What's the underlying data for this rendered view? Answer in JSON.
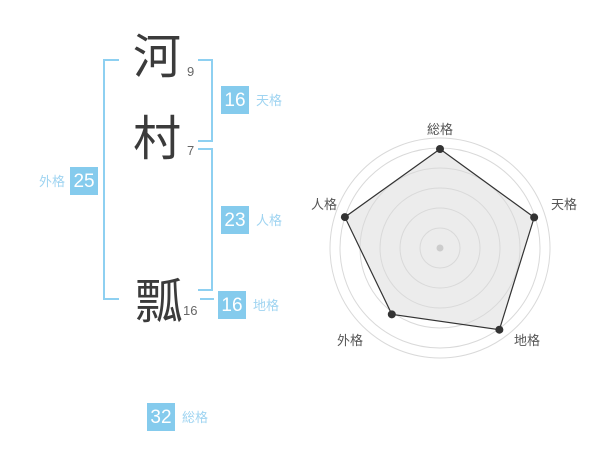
{
  "colors": {
    "box_blue": "#85cbed",
    "label_blue": "#9fd4f1",
    "bracket_blue": "#8ed0f1",
    "kanji_ink": "#3b3b3b",
    "stroke_count_gray": "#666666",
    "ring_gray": "#d9d9d9",
    "polygon_fill": "#ececec",
    "polygon_stroke": "#333333",
    "vertex_dot": "#333333",
    "center_dot": "#cccccc",
    "axis_label_gray": "#555555"
  },
  "name": {
    "characters": [
      {
        "char": "河",
        "strokes": "9"
      },
      {
        "char": "村",
        "strokes": "7"
      },
      {
        "char": "瓢",
        "strokes": "16"
      }
    ]
  },
  "scores": {
    "tenkaku": {
      "label": "天格",
      "value": "16"
    },
    "jinkaku": {
      "label": "人格",
      "value": "23"
    },
    "chikaku": {
      "label": "地格",
      "value": "16"
    },
    "gaikaku": {
      "label": "外格",
      "value": "25"
    },
    "soukaku": {
      "label": "総格",
      "value": "32"
    }
  },
  "chart_data": {
    "type": "radar",
    "title": "",
    "categories": [
      "総格",
      "天格",
      "地格",
      "外格",
      "人格"
    ],
    "values": [
      99,
      99,
      101,
      82,
      100
    ],
    "value_max": 100,
    "approx_scores_of_5": [
      5,
      5,
      5,
      4,
      5
    ],
    "angles_deg": [
      90,
      18,
      -54,
      -126,
      162
    ],
    "rings": [
      20,
      40,
      60,
      80,
      100
    ],
    "boundary_radius": 110,
    "grid": "circular",
    "legend": "none"
  }
}
